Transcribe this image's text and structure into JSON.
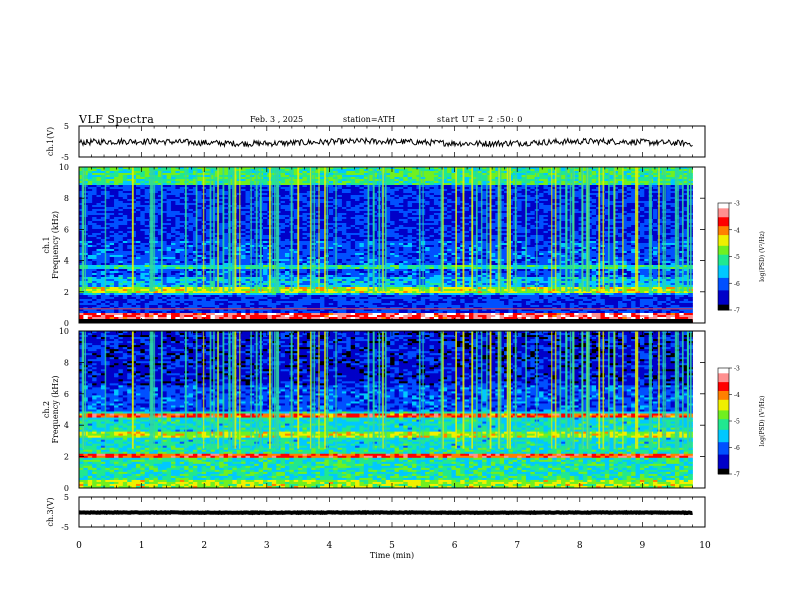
{
  "header": {
    "title": "VLF  Spectra",
    "date": "Feb. 3  , 2025",
    "station": "station=ATH",
    "start": "start  UT  =   2  :50: 0"
  },
  "chart_data": [
    {
      "type": "line",
      "name": "ch1-waveform",
      "ylabel": "ch.1(V)",
      "ylim": [
        -5,
        5
      ],
      "yticks": [
        "5",
        "-5"
      ],
      "x_range": [
        0,
        9.8
      ],
      "baseline": -0.3,
      "amplitude": 1.0
    },
    {
      "type": "heatmap",
      "name": "ch1-spectrogram",
      "ylabel_line1": "ch.1",
      "ylabel_line2": "Frequency  (kHz)",
      "ylim": [
        0,
        10
      ],
      "yticks": [
        "0",
        "2",
        "4",
        "6",
        "8",
        "10"
      ],
      "x_range": [
        0,
        9.8
      ],
      "colorbar": {
        "label": "log(PSD) (V²/Hz)",
        "range": [
          -7,
          -3
        ],
        "ticks": [
          "-3",
          "-4",
          "-5",
          "-6",
          "-7"
        ]
      }
    },
    {
      "type": "heatmap",
      "name": "ch2-spectrogram",
      "ylabel_line1": "ch.2",
      "ylabel_line2": "Frequency  (kHz)",
      "ylim": [
        0,
        10
      ],
      "yticks": [
        "0",
        "2",
        "4",
        "6",
        "8",
        "10"
      ],
      "x_range": [
        0,
        9.8
      ],
      "colorbar": {
        "label": "log(PSD) (V²/Hz)",
        "range": [
          -7,
          -3
        ],
        "ticks": [
          "-3",
          "-4",
          "-5",
          "-6",
          "-7"
        ]
      }
    },
    {
      "type": "line",
      "name": "ch3-waveform",
      "ylabel": "ch.3(V)",
      "ylim": [
        -5,
        5
      ],
      "yticks": [
        "5",
        "-5"
      ],
      "x_range": [
        0,
        9.8
      ],
      "baseline": -0.2,
      "amplitude": 0.1
    }
  ],
  "xaxis": {
    "label": "Time  (min)",
    "range": [
      0,
      10
    ],
    "ticks": [
      "0",
      "1",
      "2",
      "3",
      "4",
      "5",
      "6",
      "7",
      "8",
      "9",
      "10"
    ]
  },
  "colors": {
    "colormap": [
      "#000000",
      "#0000c8",
      "#0050ff",
      "#00c8ff",
      "#20e890",
      "#70f020",
      "#f0f000",
      "#ff8000",
      "#ff0000",
      "#ff9090",
      "#ffffff"
    ]
  }
}
